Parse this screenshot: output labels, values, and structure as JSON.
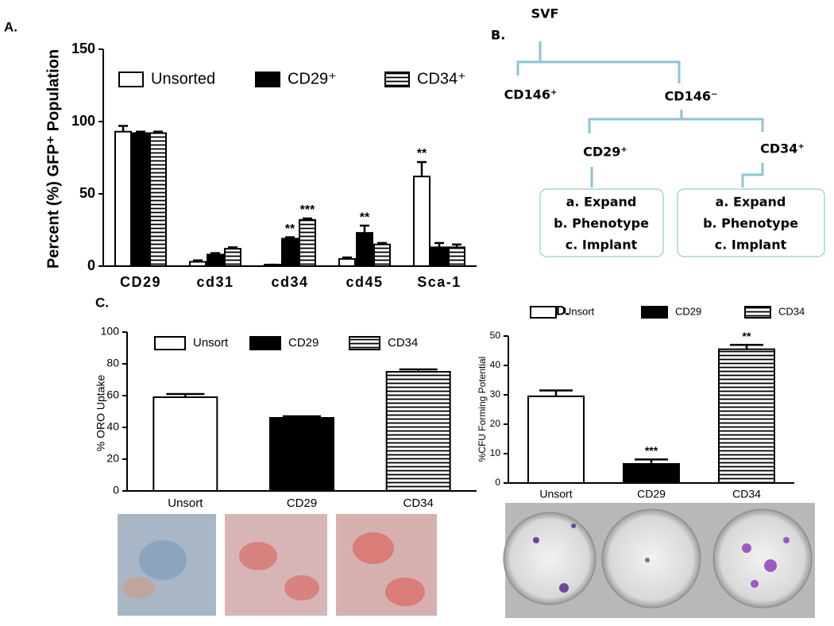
{
  "chart_data": [
    {
      "type": "bar",
      "panel": "A.",
      "y_label": "Percent (%) GFP⁺ Population",
      "categories": [
        "CD29",
        "cd31",
        "cd34",
        "cd45",
        "Sca-1"
      ],
      "series": [
        {
          "name": "Unsorted",
          "color": "#000000",
          "fill": "hollow",
          "values": [
            93,
            3,
            1,
            5,
            62
          ],
          "errors": [
            4,
            1,
            0,
            1,
            10
          ],
          "significance": [
            null,
            null,
            null,
            null,
            "**"
          ]
        },
        {
          "name": "CD29⁺",
          "color": "#000000",
          "fill": "solid",
          "values": [
            92,
            8,
            19,
            23,
            13
          ],
          "errors": [
            1,
            1,
            1,
            5,
            3
          ],
          "significance": [
            null,
            null,
            "**",
            "**",
            null
          ]
        },
        {
          "name": "CD34⁺",
          "color": "#000000",
          "fill": "striped",
          "values": [
            92,
            12,
            32,
            15,
            13
          ],
          "errors": [
            1,
            1,
            1,
            1,
            2
          ],
          "significance": [
            null,
            null,
            "***",
            null,
            null
          ]
        }
      ],
      "ylim": [
        0,
        150
      ],
      "yticks": [
        0,
        50,
        100,
        150
      ]
    },
    {
      "type": "bar",
      "panel": "C.",
      "y_label": "% ORO Uptake",
      "categories": [
        "Unsort",
        "CD29",
        "CD34"
      ],
      "series": [
        {
          "name": "Unsort",
          "color": "#000000",
          "fill": "hollow",
          "values": [
            59,
            null,
            null
          ],
          "errors": [
            2,
            null,
            null
          ]
        },
        {
          "name": "CD29",
          "color": "#000000",
          "fill": "solid",
          "values": [
            null,
            46,
            null
          ],
          "errors": [
            null,
            1,
            null
          ]
        },
        {
          "name": "CD34",
          "color": "#000000",
          "fill": "striped",
          "values": [
            null,
            null,
            75
          ],
          "errors": [
            null,
            null,
            1.5
          ]
        }
      ],
      "ylim": [
        0,
        100
      ],
      "yticks": [
        0,
        20,
        40,
        60,
        80,
        100
      ]
    },
    {
      "type": "bar",
      "panel": "D.",
      "y_label": "%CFU Forming Potential",
      "categories": [
        "Unsort",
        "CD29",
        "CD34"
      ],
      "series": [
        {
          "name": "Unsort",
          "color": "#000000",
          "fill": "hollow",
          "values": [
            29.5,
            null,
            null
          ],
          "errors": [
            2,
            null,
            null
          ],
          "significance": [
            null,
            null,
            null
          ]
        },
        {
          "name": "CD29",
          "color": "#000000",
          "fill": "solid",
          "values": [
            null,
            6.5,
            null
          ],
          "errors": [
            null,
            1.5,
            null
          ],
          "significance": [
            null,
            "***",
            null
          ]
        },
        {
          "name": "CD34",
          "color": "#000000",
          "fill": "striped",
          "values": [
            null,
            null,
            45.5
          ],
          "errors": [
            null,
            null,
            1.5
          ],
          "significance": [
            null,
            null,
            "**"
          ]
        }
      ],
      "ylim": [
        0,
        50
      ],
      "yticks": [
        0,
        10,
        20,
        30,
        40,
        50
      ]
    }
  ],
  "diagram": {
    "panel": "B.",
    "root": "SVF",
    "level1": [
      "CD146⁺",
      "CD146⁻"
    ],
    "level2": [
      "CD29⁺",
      "CD34⁺"
    ],
    "boxes": [
      [
        "a. Expand",
        "b. Phenotype",
        "c. Implant"
      ],
      [
        "a. Expand",
        "b. Phenotype",
        "c. Implant"
      ]
    ]
  }
}
